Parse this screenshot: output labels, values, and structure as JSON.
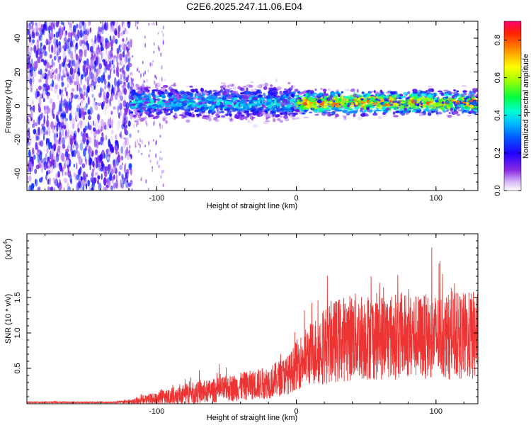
{
  "title": "C2E6.2025.247.11.06.E04",
  "chart_data": [
    {
      "type": "heatmap",
      "name": "spectrogram",
      "xlabel": "Height of straight line (km)",
      "ylabel": "Frequency (Hz)",
      "xlim": [
        -193,
        130
      ],
      "ylim": [
        -50,
        50
      ],
      "xticks": [
        -100,
        0,
        100
      ],
      "yticks": [
        -40,
        -20,
        0,
        20,
        40
      ],
      "xtick_labels": [
        "-100",
        "0",
        "100"
      ],
      "ytick_labels": [
        "-40",
        "-20",
        "0",
        "20",
        "40"
      ],
      "colorbar": {
        "label": "Normalized spectral amplitude",
        "range": [
          0,
          0.9
        ],
        "ticks": [
          0.0,
          0.2,
          0.4,
          0.6,
          0.8
        ],
        "tick_labels": [
          "0.0",
          "0.2",
          "0.4",
          "0.6",
          "0.8"
        ],
        "colors": [
          "#ffffff",
          "#d8b8f8",
          "#8a2be2",
          "#4b00ff",
          "#0000ff",
          "#00b0ff",
          "#00ffff",
          "#00ff60",
          "#ffff00",
          "#ff8000",
          "#ff0040"
        ]
      },
      "regions": [
        {
          "x_range": [
            -193,
            -118
          ],
          "description_value": "broadband noise",
          "amplitude": 0.1
        },
        {
          "x_range": [
            -118,
            130
          ],
          "center_freq_hz": 2,
          "half_width_hz": 7,
          "amplitude_peak": 0.85
        }
      ]
    },
    {
      "type": "line",
      "name": "snr",
      "xlabel": "Height of straight line (km)",
      "ylabel": "SNR (10 * v/v)",
      "yscale_label": "(x10",
      "yscale_exp": "4",
      "xlim": [
        -193,
        130
      ],
      "ylim": [
        0,
        2.4
      ],
      "xticks": [
        -100,
        0,
        100
      ],
      "yticks": [
        0.5,
        1.0,
        1.5
      ],
      "xtick_labels": [
        "-100",
        "0",
        "100"
      ],
      "ytick_labels": [
        "0.5",
        "1.0",
        "1.5"
      ],
      "color": "#ee3333",
      "envelope": {
        "x": [
          -193,
          -130,
          -118,
          -100,
          -80,
          -60,
          -40,
          -20,
          -5,
          0,
          10,
          20,
          30,
          40,
          60,
          80,
          100,
          120,
          130
        ],
        "mean": [
          0.02,
          0.02,
          0.03,
          0.07,
          0.13,
          0.18,
          0.24,
          0.3,
          0.42,
          0.55,
          0.7,
          0.82,
          0.9,
          0.95,
          0.95,
          0.95,
          0.95,
          0.95,
          0.95
        ],
        "spread": [
          0.01,
          0.01,
          0.03,
          0.1,
          0.15,
          0.17,
          0.2,
          0.23,
          0.28,
          0.35,
          0.45,
          0.55,
          0.6,
          0.62,
          0.62,
          0.6,
          0.6,
          0.62,
          0.65
        ]
      }
    }
  ]
}
